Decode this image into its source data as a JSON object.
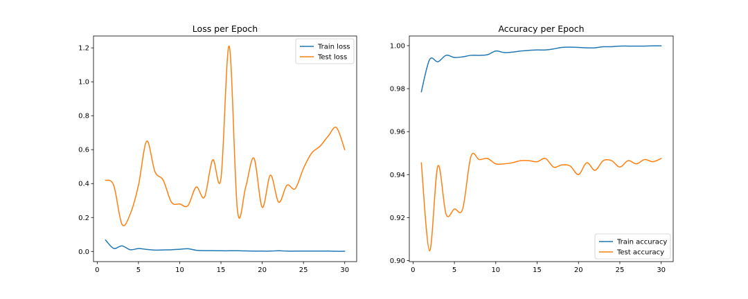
{
  "chart_data": [
    {
      "type": "line",
      "title": "Loss per Epoch",
      "xlabel": "",
      "ylabel": "",
      "xlim": [
        -0.45,
        31.45
      ],
      "ylim": [
        -0.06,
        1.27
      ],
      "xticks": [
        0,
        5,
        10,
        15,
        20,
        25,
        30
      ],
      "yticks": [
        0.0,
        0.2,
        0.4,
        0.6,
        0.8,
        1.0,
        1.2
      ],
      "legend_position": "upper-right",
      "x": [
        1,
        2,
        3,
        4,
        5,
        6,
        7,
        8,
        9,
        10,
        11,
        12,
        13,
        14,
        15,
        16,
        17,
        18,
        19,
        20,
        21,
        22,
        23,
        24,
        25,
        26,
        27,
        28,
        29,
        30
      ],
      "series": [
        {
          "name": "Train loss",
          "color": "#1f77b4",
          "values": [
            0.068,
            0.018,
            0.033,
            0.01,
            0.017,
            0.012,
            0.008,
            0.009,
            0.01,
            0.013,
            0.016,
            0.007,
            0.005,
            0.005,
            0.004,
            0.004,
            0.004,
            0.003,
            0.002,
            0.002,
            0.002,
            0.004,
            0.002,
            0.002,
            0.002,
            0.002,
            0.002,
            0.002,
            0.001,
            0.001
          ]
        },
        {
          "name": "Test loss",
          "color": "#ff7f0e",
          "values": [
            0.42,
            0.39,
            0.16,
            0.22,
            0.39,
            0.65,
            0.47,
            0.42,
            0.29,
            0.28,
            0.27,
            0.38,
            0.32,
            0.54,
            0.43,
            1.21,
            0.24,
            0.38,
            0.55,
            0.26,
            0.45,
            0.29,
            0.39,
            0.37,
            0.49,
            0.58,
            0.62,
            0.68,
            0.73,
            0.6
          ]
        }
      ]
    },
    {
      "type": "line",
      "title": "Accuracy per Epoch",
      "xlabel": "",
      "ylabel": "",
      "xlim": [
        -0.45,
        31.45
      ],
      "ylim": [
        0.8995,
        1.0045
      ],
      "xticks": [
        0,
        5,
        10,
        15,
        20,
        25,
        30
      ],
      "yticks": [
        0.9,
        0.92,
        0.94,
        0.96,
        0.98,
        1.0
      ],
      "legend_position": "lower-right",
      "x": [
        1,
        2,
        3,
        4,
        5,
        6,
        7,
        8,
        9,
        10,
        11,
        12,
        13,
        14,
        15,
        16,
        17,
        18,
        19,
        20,
        21,
        22,
        23,
        24,
        25,
        26,
        27,
        28,
        29,
        30
      ],
      "series": [
        {
          "name": "Train accuracy",
          "color": "#1f77b4",
          "values": [
            0.9785,
            0.9935,
            0.9925,
            0.9955,
            0.9945,
            0.9948,
            0.9955,
            0.9955,
            0.9958,
            0.9975,
            0.9968,
            0.997,
            0.9975,
            0.9978,
            0.998,
            0.998,
            0.9985,
            0.9992,
            0.9993,
            0.9992,
            0.999,
            0.999,
            0.9995,
            0.9995,
            0.9998,
            0.9998,
            0.9998,
            0.9998,
            0.9999,
            0.9999
          ]
        },
        {
          "name": "Test accuracy",
          "color": "#ff7f0e",
          "values": [
            0.9455,
            0.9045,
            0.944,
            0.9215,
            0.924,
            0.924,
            0.9485,
            0.947,
            0.9475,
            0.945,
            0.945,
            0.9455,
            0.9465,
            0.9465,
            0.946,
            0.9475,
            0.9435,
            0.9445,
            0.944,
            0.94,
            0.9455,
            0.942,
            0.9465,
            0.9465,
            0.9435,
            0.9465,
            0.945,
            0.947,
            0.946,
            0.9475
          ]
        }
      ]
    }
  ]
}
